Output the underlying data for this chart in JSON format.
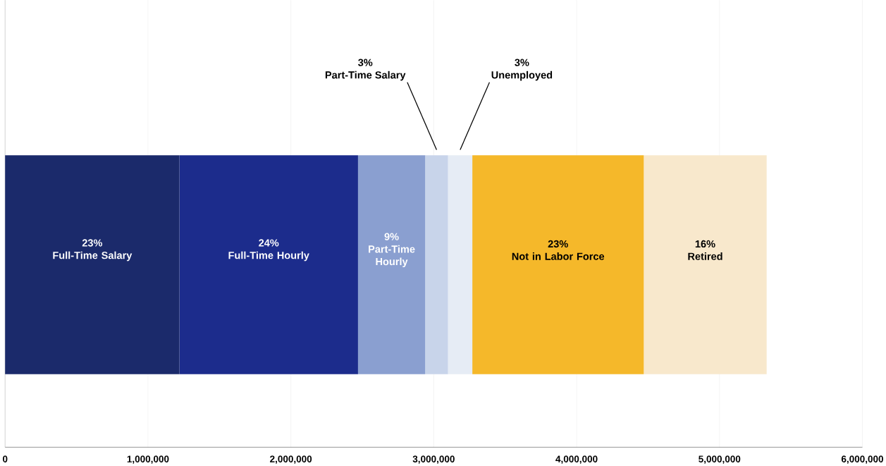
{
  "chart_data": {
    "type": "bar",
    "orientation": "horizontal",
    "stacked": true,
    "categories": [
      null
    ],
    "series": [
      {
        "name": "Full-Time Salary",
        "color": "#1b2a6b",
        "values": [
          1220000
        ]
      },
      {
        "name": "Full-Time Hourly",
        "color": "#1c2c8c",
        "values": [
          1250000
        ]
      },
      {
        "name": "Part-Time Hourly",
        "color": "#8a9fd0",
        "values": [
          470000
        ]
      },
      {
        "name": "Part-Time Salary",
        "color": "#c8d4ea",
        "values": [
          160000
        ]
      },
      {
        "name": "Unemployed",
        "color": "#e6ecf5",
        "values": [
          170000
        ]
      },
      {
        "name": "Not in Labor Force",
        "color": "#f5b82a",
        "values": [
          1200000
        ]
      },
      {
        "name": "Retired",
        "color": "#f8e8cc",
        "values": [
          860000
        ]
      }
    ],
    "annotations": [
      "23%",
      "24%",
      "9%",
      "3%",
      "3%",
      "23%",
      "16%"
    ],
    "xlim": [
      0,
      6000000
    ],
    "xticks": [
      0,
      {
        "value": 1000000,
        "label": "1,000,000"
      },
      {
        "value": 2000000,
        "label": "2,000,000"
      },
      {
        "value": 3000000,
        "label": "3,000,000"
      },
      {
        "value": 4000000,
        "label": "4,000,000"
      },
      {
        "value": 5000000,
        "label": "5,000,000"
      },
      {
        "value": 6000000,
        "label": "6,000,000"
      }
    ],
    "grid": "x",
    "tick_labels": "x"
  }
}
